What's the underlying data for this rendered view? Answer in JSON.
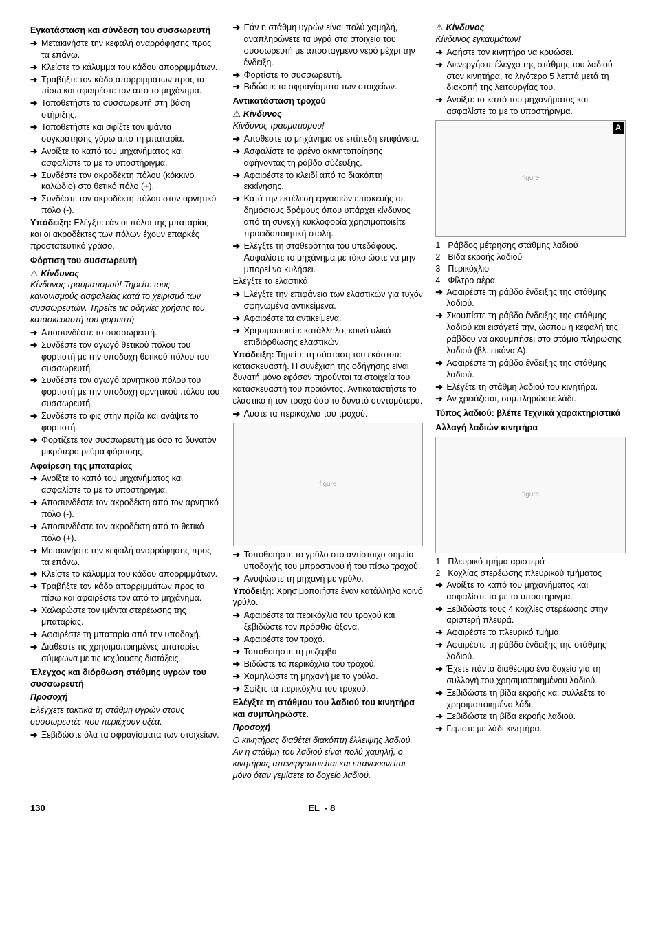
{
  "footer": {
    "page": "130",
    "lang": "EL",
    "sep": "-",
    "sub": "8"
  },
  "glyph": {
    "arrow": "➔",
    "triangle": "⚠"
  },
  "col1": {
    "s1": {
      "title": "Εγκατάσταση και σύνδεση του συσσωρευτή",
      "items": [
        "Μετακινήστε την κεφαλή αναρρόφησης προς τα επάνω.",
        "Κλείστε το κάλυμμα του κάδου απορριμμάτων.",
        "Τραβήξτε τον κάδο απορριμμάτων προς τα πίσω και αφαιρέστε τον από το μηχάνημα.",
        "Τοποθετήστε το συσσωρευτή στη βάση στήριξης.",
        "Τοποθετήστε και σφίξτε τον ιμάντα συγκράτησης γύρω από τη μπαταρία.",
        "Ανοίξτε το καπό του μηχανήματος και ασφαλίστε το με το υποστήριγμα.",
        "Συνδέστε τον ακροδέκτη πόλου (κόκκινο καλώδιο) στο θετικό πόλο (+).",
        "Συνδέστε τον ακροδέκτη πόλου στον αρνητικό πόλο (-)."
      ],
      "note_label": "Υπόδειξη:",
      "note": "Ελέγξτε εάν οι πόλοι της μπαταρίας και οι ακροδέκτες των πόλων έχουν επαρκές προστατευτικό γράσο."
    },
    "s2": {
      "title": "Φόρτιση του συσσωρευτή",
      "danger": "Κίνδυνος",
      "ital": "Κίνδυνος τραυματισμού! Τηρείτε τους κανονισμούς ασφαλείας κατά το χειρισμό των συσσωρευτών. Τηρείτε τις οδηγίες χρήσης του κατασκευαστή του φορτιστή.",
      "items": [
        "Αποσυνδέστε το συσσωρευτή.",
        "Συνδέστε τον αγωγό θετικού πόλου του φορτιστή με την υποδοχή θετικού πόλου του συσσωρευτή.",
        "Συνδέστε τον αγωγό αρνητικού πόλου του φορτιστή με την υποδοχή αρνητικού πόλου του συσσωρευτή.",
        "Συνδέστε το φις στην πρίζα και ανάψτε το φορτιστή.",
        "Φορτίζετε τον συσσωρευτή με όσο το δυνατόν μικρότερο ρεύμα φόρτισης."
      ]
    },
    "s3": {
      "title": "Αφαίρεση της μπαταρίας",
      "items": [
        "Ανοίξτε το καπό του μηχανήματος και ασφαλίστε το με το υποστήριγμα.",
        "Αποσυνδέστε τον ακροδέκτη από τον αρνητικό πόλο (-).",
        "Αποσυνδέστε τον ακροδέκτη από το θετικό πόλο (+).",
        "Μετακινήστε την κεφαλή αναρρόφησης προς τα επάνω.",
        "Κλείστε το κάλυμμα του κάδου απορριμμάτων.",
        "Τραβήξτε τον κάδο απορριμμάτων προς τα πίσω και αφαιρέστε τον από το μηχάνημα.",
        "Χαλαρώστε τον ιμάντα στερέωσης της μπαταρίας.",
        "Αφαιρέστε τη μπαταρία από την υποδοχή.",
        "Διαθέστε τις χρησιμοποιημένες μπαταρίες σύμφωνα με τις ισχύουσες διατάξεις."
      ]
    },
    "s4": {
      "title": "Έλεγχος και διόρθωση στάθμης υγρών του συσσωρευτή",
      "caution": "Προσοχή",
      "ital": "Ελέγχετε τακτικά τη στάθμη υγρών στους συσσωρευτές που περιέχουν οξέα.",
      "items": [
        "Ξεβιδώστε όλα τα σφραγίσματα των στοιχείων."
      ]
    }
  },
  "col2": {
    "lead_items": [
      "Εάν η στάθμη υγρών είναι πολύ χαμηλή, αναπληρώνετε τα υγρά στα στοιχεία του συσσωρευτή με αποσταγμένο νερό μέχρι την ένδειξη.",
      "Φορτίστε το συσσωρευτή.",
      "Βιδώστε τα σφραγίσματα των στοιχείων."
    ],
    "s1": {
      "title": "Αντικατάσταση τροχού",
      "danger": "Κίνδυνος",
      "ital": "Κίνδυνος τραυματισμού!",
      "items": [
        "Αποθέστε το μηχάνημα σε επίπεδη επιφάνεια.",
        "Ασφαλίστε το φρένο ακινητοποίησης αφήνοντας τη ράβδο σύζευξης.",
        "Αφαιρέστε το κλειδί από το διακόπτη εκκίνησης.",
        "Κατά την εκτέλεση εργασιών επισκευής σε δημόσιους δρόμους όπου υπάρχει κίνδυνος από τη συνεχή κυκλοφορία χρησιμοποιείτε προειδοποιητική στολή.",
        "Ελέγξτε τη σταθερότητα του υπεδάφους. Ασφαλίστε το μηχάνημα με τάκο ώστε να μην μπορεί να κυλήσει."
      ],
      "check": "Ελέγξτε τα ελαστικά",
      "items2": [
        "Ελέγξτε την επιφάνεια των ελαστικών για τυχόν σφηνωμένα αντικείμενα.",
        "Αφαιρέστε τα αντικείμενα.",
        "Χρησιμοποιείτε κατάλληλο, κοινό υλικό επιδιόρθωσης ελαστικών."
      ],
      "note_label": "Υπόδειξη:",
      "note": "Τηρείτε τη σύσταση του εκάστοτε κατασκευαστή. Η συνέχιση της οδήγησης είναι δυνατή μόνο εφόσον τηρούνται τα στοιχεία του κατασκευαστή του προϊόντος. Αντικαταστήστε το ελαστικό ή τον τροχό όσο το δυνατό συντομότερα.",
      "items3": [
        "Λύστε τα περικόχλια του τροχού."
      ],
      "fig_h": 180,
      "items4": [
        "Τοποθετήστε το γρύλο στο αντίστοιχο σημείο υποδοχής του μπροστινού ή του πίσω τροχού.",
        "Ανυψώστε τη μηχανή με γρύλο."
      ],
      "note2_label": "Υπόδειξη:",
      "note2": "Χρησιμοποιήστε έναν κατάλληλο κοινό γρύλο.",
      "items5": [
        "Αφαιρέστε τα περικόχλια του τροχού και ξεβιδώστε τον πρόσθιο άξονα.",
        "Αφαιρέστε τον τροχό.",
        "Τοποθετήστε τη ρεζέρβα.",
        "Βιδώστε τα περικόχλια του τροχού.",
        "Χαμηλώστε τη μηχανή με το γρύλο.",
        "Σφίξτε τα περικόχλια του τροχού."
      ]
    },
    "s2": {
      "title": "Ελέγξτε τη στάθμου του λαδιού του κινητήρα και συμπληρώστε.",
      "caution": "Προσοχή",
      "ital": "Ο κινητήρας διαθέτει διακόπτη έλλειψης λαδιού. Αν η στάθμη του λαδιού είναι πολύ χαμηλή, ο κινητήρας απενεργοποιείται και επανεκκινείται μόνο όταν γεμίσετε το δοχείο λαδιού."
    }
  },
  "col3": {
    "danger": "Κίνδυνος",
    "ital": "Κίνδυνος εγκαυμάτων!",
    "items": [
      "Αφήστε τον κινητήρα να κρυώσει.",
      "Διενεργήστε έλεγχο της στάθμης του λαδιού στον κινητήρα, το λιγότερο 5 λεπτά μετά τη διακοπή της λειτουργίας του.",
      "Ανοίξτε το καπό του μηχανήματος και ασφαλίστε το με το υποστήριγμα."
    ],
    "fig1_h": 170,
    "fig1_label": "A",
    "legend1": [
      "Ράβδος μέτρησης στάθμης λαδιού",
      "Βίδα εκροής λαδιού",
      "Περικόχλιο",
      "Φίλτρο αέρα"
    ],
    "items2": [
      "Αφαιρέστε τη ράβδο ένδειξης της στάθμης λαδιού.",
      "Σκουπίστε τη ράβδο ένδειξης της στάθμης λαδιού και εισάγετέ την, ώσπου η κεφαλή της ράβδου να ακουμπήσει στο στόμιο πλήρωσης λαδιού (βλ. εικόνα Α).",
      "Αφαιρέστε τη ράβδο ένδειξης της στάθμης λαδιού.",
      "Ελέγξτε τη στάθμη λαδιού του κινητήρα.",
      "Αν χρειάζεται, συμπληρώστε λάδι."
    ],
    "oil_type": "Τύπος λαδιού: βλέπε Τεχνικά χαρακτηριστικά",
    "s2": {
      "title": "Αλλαγή λαδιών κινητήρα",
      "fig_h": 170,
      "legend": [
        "Πλευρικό τμήμα αριστερά",
        "Κοχλίας στερέωσης πλευρικού τμήματος"
      ],
      "items": [
        "Ανοίξτε το καπό του μηχανήματος και ασφαλίστε το με το υποστήριγμα.",
        "Ξεβιδώστε τους 4 κοχλίες στερέωσης στην αριστερή πλευρά.",
        "Αφαιρέστε το πλευρικό τμήμα.",
        "Αφαιρέστε τη ράβδο ένδειξης της στάθμης λαδιού.",
        "Έχετε πάντα διαθέσιμο ένα δοχείο για τη συλλογή του χρησιμοποιημένου λαδιού.",
        "Ξεβιδώστε τη βίδα εκροής και συλλέξτε το χρησιμοποιημένο λάδι.",
        "Ξεβιδώστε τη βίδα εκροής λαδιού.",
        "Γεμίστε με λάδι κινητήρα."
      ]
    }
  }
}
